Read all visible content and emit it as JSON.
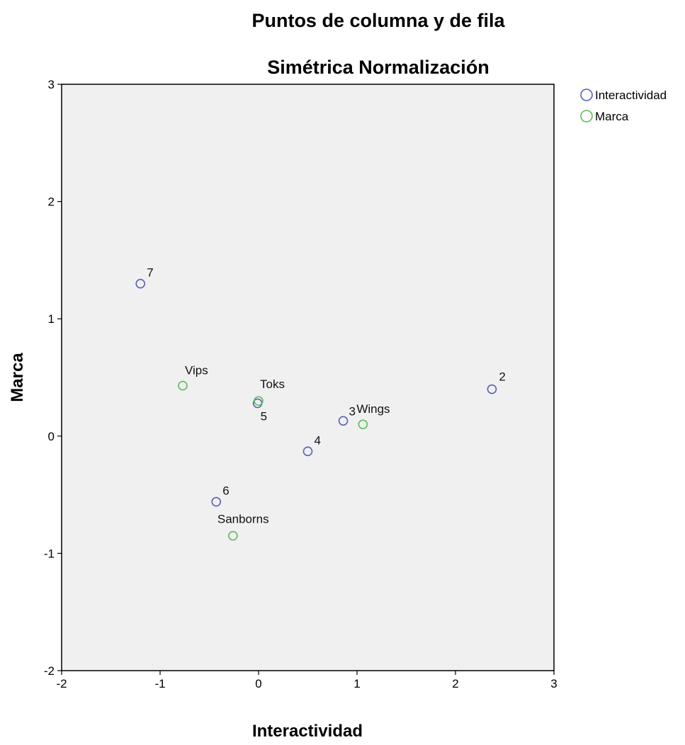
{
  "chart_data": {
    "type": "scatter",
    "title": "Puntos de columna y de fila",
    "subtitle": "Simétrica Normalización",
    "xlabel": "Interactividad",
    "ylabel": "Marca",
    "xlim": [
      -2,
      3
    ],
    "ylim": [
      -2,
      3
    ],
    "xticks": [
      "-2",
      "-1",
      "0",
      "1",
      "2",
      "3"
    ],
    "yticks": [
      "-2",
      "-1",
      "0",
      "1",
      "2",
      "3"
    ],
    "grid": false,
    "legend_position": "top-right",
    "plot_background": "#f0f0f0",
    "series": [
      {
        "name": "Interactividad",
        "color": "#5a5fb8",
        "points": [
          {
            "label": "2",
            "x": 2.37,
            "y": 0.4
          },
          {
            "label": "3",
            "x": 0.86,
            "y": 0.13
          },
          {
            "label": "4",
            "x": 0.5,
            "y": -0.13
          },
          {
            "label": "5",
            "x": -0.01,
            "y": 0.28
          },
          {
            "label": "6",
            "x": -0.43,
            "y": -0.56
          },
          {
            "label": "7",
            "x": -1.2,
            "y": 1.3
          }
        ]
      },
      {
        "name": "Marca",
        "color": "#5bbd5b",
        "points": [
          {
            "label": "Vips",
            "x": -0.77,
            "y": 0.43
          },
          {
            "label": "Toks",
            "x": 0.0,
            "y": 0.3
          },
          {
            "label": "Wings",
            "x": 1.06,
            "y": 0.1
          },
          {
            "label": "Sanborns",
            "x": -0.26,
            "y": -0.85
          }
        ]
      }
    ]
  }
}
